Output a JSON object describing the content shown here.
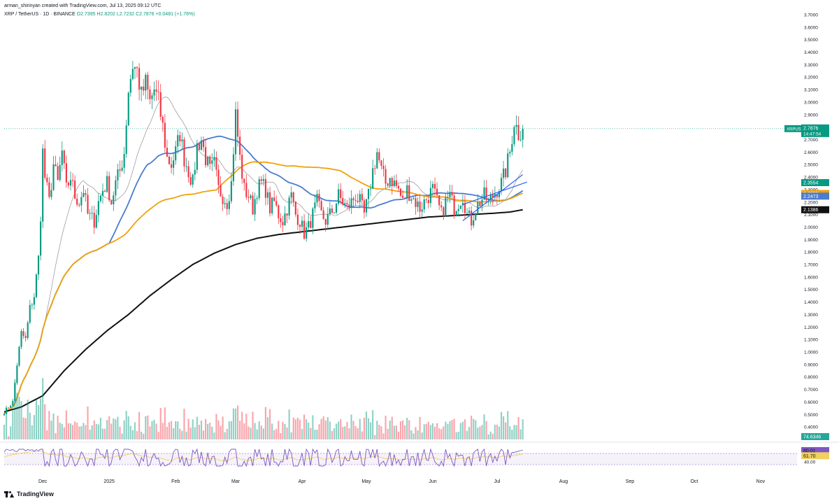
{
  "header": {
    "line1": "arman_shirinyan created with TradingView.com, Jul 13, 2025 09:12 UTC",
    "symbol": "XRP / TetherUS · 1D · BINANCE",
    "ohlc": "O2.7395 H2.8202 L2.7232 C2.7876 +0.0481 (+1.76%)"
  },
  "footer": {
    "logo_text": "TradingView"
  },
  "colors": {
    "up": "#089981",
    "down": "#f23645",
    "ma20": "#9e9e9e",
    "ma50": "#4a7ccf",
    "ma100": "#f0a20a",
    "ma200": "#111111",
    "rsi": "#7e57c2"
  },
  "chart_data": {
    "type": "candlestick",
    "price_axis": {
      "ylim": [
        0.3,
        3.75
      ],
      "ticks": [
        "0.4000",
        "0.5000",
        "0.6000",
        "0.7000",
        "0.8000",
        "0.9000",
        "1.0000",
        "1.1000",
        "1.2000",
        "1.3000",
        "1.4000",
        "1.5000",
        "1.6000",
        "1.7000",
        "1.8000",
        "1.9000",
        "2.0000",
        "2.1000",
        "2.2000",
        "2.3000",
        "2.4000",
        "2.5000",
        "2.6000",
        "2.7000",
        "2.8000",
        "2.9000",
        "3.0000",
        "3.1000",
        "3.2000",
        "3.3000",
        "3.4000",
        "3.5000",
        "3.6000",
        "3.7000"
      ]
    },
    "time_axis": {
      "labels": [
        {
          "text": "Dec",
          "day": 0
        },
        {
          "text": "2025",
          "day": 31
        },
        {
          "text": "Feb",
          "day": 62
        },
        {
          "text": "Mar",
          "day": 90
        },
        {
          "text": "Apr",
          "day": 121
        },
        {
          "text": "May",
          "day": 151
        },
        {
          "text": "Jun",
          "day": 182
        },
        {
          "text": "Jul",
          "day": 212
        },
        {
          "text": "Aug",
          "day": 243
        },
        {
          "text": "Sep",
          "day": 274
        },
        {
          "text": "Oct",
          "day": 304
        },
        {
          "text": "Nov",
          "day": 335
        }
      ],
      "first_day_offset": -18,
      "last_day": 224,
      "max_day": 352
    },
    "price_anchors": [
      [
        -18,
        0.52
      ],
      [
        -14,
        0.6
      ],
      [
        -12,
        0.9
      ],
      [
        -10,
        1.15
      ],
      [
        -8,
        1.1
      ],
      [
        -6,
        1.35
      ],
      [
        -4,
        1.45
      ],
      [
        -2,
        1.75
      ],
      [
        -1,
        2.1
      ],
      [
        0,
        2.6
      ],
      [
        1,
        2.4
      ],
      [
        3,
        2.2
      ],
      [
        5,
        2.5
      ],
      [
        7,
        2.35
      ],
      [
        9,
        2.6
      ],
      [
        11,
        2.3
      ],
      [
        13,
        2.4
      ],
      [
        15,
        2.25
      ],
      [
        17,
        2.2
      ],
      [
        19,
        2.3
      ],
      [
        21,
        2.1
      ],
      [
        24,
        2.05
      ],
      [
        26,
        2.2
      ],
      [
        28,
        2.3
      ],
      [
        30,
        2.35
      ],
      [
        32,
        2.2
      ],
      [
        34,
        2.35
      ],
      [
        36,
        2.45
      ],
      [
        38,
        2.6
      ],
      [
        40,
        3.1
      ],
      [
        42,
        3.3
      ],
      [
        44,
        3.25
      ],
      [
        46,
        3.05
      ],
      [
        48,
        3.15
      ],
      [
        50,
        3.0
      ],
      [
        52,
        3.1
      ],
      [
        54,
        3.0
      ],
      [
        56,
        2.8
      ],
      [
        58,
        2.55
      ],
      [
        60,
        2.5
      ],
      [
        62,
        2.6
      ],
      [
        64,
        2.75
      ],
      [
        66,
        2.55
      ],
      [
        68,
        2.45
      ],
      [
        70,
        2.35
      ],
      [
        72,
        2.65
      ],
      [
        74,
        2.7
      ],
      [
        76,
        2.55
      ],
      [
        78,
        2.45
      ],
      [
        80,
        2.5
      ],
      [
        82,
        2.3
      ],
      [
        84,
        2.25
      ],
      [
        86,
        2.2
      ],
      [
        88,
        2.35
      ],
      [
        90,
        2.9
      ],
      [
        92,
        2.55
      ],
      [
        94,
        2.3
      ],
      [
        96,
        2.25
      ],
      [
        98,
        2.15
      ],
      [
        100,
        2.3
      ],
      [
        102,
        2.35
      ],
      [
        104,
        2.3
      ],
      [
        106,
        2.15
      ],
      [
        108,
        2.2
      ],
      [
        110,
        2.1
      ],
      [
        112,
        2.05
      ],
      [
        114,
        2.15
      ],
      [
        116,
        2.25
      ],
      [
        118,
        2.1
      ],
      [
        120,
        2.05
      ],
      [
        122,
        1.95
      ],
      [
        124,
        2.0
      ],
      [
        126,
        2.1
      ],
      [
        128,
        2.2
      ],
      [
        130,
        2.1
      ],
      [
        132,
        2.05
      ],
      [
        134,
        2.1
      ],
      [
        136,
        2.15
      ],
      [
        138,
        2.25
      ],
      [
        140,
        2.2
      ],
      [
        142,
        2.15
      ],
      [
        144,
        2.2
      ],
      [
        146,
        2.25
      ],
      [
        148,
        2.2
      ],
      [
        150,
        2.1
      ],
      [
        152,
        2.25
      ],
      [
        154,
        2.45
      ],
      [
        156,
        2.6
      ],
      [
        158,
        2.45
      ],
      [
        160,
        2.35
      ],
      [
        162,
        2.4
      ],
      [
        164,
        2.35
      ],
      [
        166,
        2.3
      ],
      [
        168,
        2.2
      ],
      [
        170,
        2.3
      ],
      [
        172,
        2.25
      ],
      [
        174,
        2.2
      ],
      [
        176,
        2.15
      ],
      [
        178,
        2.2
      ],
      [
        180,
        2.25
      ],
      [
        182,
        2.3
      ],
      [
        184,
        2.2
      ],
      [
        186,
        2.1
      ],
      [
        188,
        2.2
      ],
      [
        190,
        2.25
      ],
      [
        192,
        2.15
      ],
      [
        194,
        2.2
      ],
      [
        196,
        2.25
      ],
      [
        198,
        2.1
      ],
      [
        200,
        2.05
      ],
      [
        202,
        2.15
      ],
      [
        204,
        2.2
      ],
      [
        206,
        2.25
      ],
      [
        208,
        2.2
      ],
      [
        210,
        2.25
      ],
      [
        212,
        2.3
      ],
      [
        214,
        2.35
      ],
      [
        216,
        2.45
      ],
      [
        218,
        2.6
      ],
      [
        220,
        2.85
      ],
      [
        222,
        2.75
      ],
      [
        224,
        2.7876
      ]
    ],
    "moving_averages": [
      {
        "period": 20,
        "color": "#9e9e9e",
        "label": ""
      },
      {
        "period": 50,
        "color": "#4a7ccf",
        "label": "2.2473"
      },
      {
        "period": 100,
        "color": "#f0a20a",
        "label": "2.2686"
      },
      {
        "period": 200,
        "color": "#111111",
        "label": "2.1386",
        "anchors": [
          [
            -18,
            0.52
          ],
          [
            -10,
            0.56
          ],
          [
            0,
            0.65
          ],
          [
            10,
            0.85
          ],
          [
            20,
            1.02
          ],
          [
            30,
            1.17
          ],
          [
            40,
            1.3
          ],
          [
            50,
            1.45
          ],
          [
            60,
            1.58
          ],
          [
            70,
            1.7
          ],
          [
            80,
            1.79
          ],
          [
            90,
            1.86
          ],
          [
            100,
            1.91
          ],
          [
            110,
            1.94
          ],
          [
            120,
            1.96
          ],
          [
            130,
            1.98
          ],
          [
            140,
            2.0
          ],
          [
            150,
            2.02
          ],
          [
            160,
            2.04
          ],
          [
            170,
            2.06
          ],
          [
            180,
            2.08
          ],
          [
            190,
            2.09
          ],
          [
            200,
            2.1
          ],
          [
            210,
            2.11
          ],
          [
            218,
            2.12
          ],
          [
            224,
            2.1386
          ]
        ]
      }
    ],
    "last_price": {
      "value": 2.7876,
      "label": "2.7876",
      "countdown": "14:47:54",
      "symbol_tag": "XRPUSDT"
    },
    "price_labels": [
      {
        "value": 2.3554,
        "label": "2.3554",
        "color": "#089981"
      },
      {
        "value": 2.2686,
        "label": "2.2686",
        "color": "#f0a20a"
      },
      {
        "value": 2.2473,
        "label": "2.2473",
        "color": "#4a7ccf"
      },
      {
        "value": 2.1386,
        "label": "2.1386",
        "color": "#111111"
      }
    ],
    "channel": [
      {
        "from": [
          196,
          2.05
        ],
        "to": [
          224,
          2.42
        ]
      },
      {
        "from": [
          196,
          2.18
        ],
        "to": [
          226,
          2.36
        ]
      }
    ],
    "volume": {
      "label": "74.6346"
    },
    "rsi": {
      "ylim": [
        0,
        100
      ],
      "ticks": [
        "40.00"
      ],
      "labels": [
        {
          "value": 80.01,
          "label": "80.01",
          "color": "#7e57c2"
        },
        {
          "value": 61.7,
          "label": "61.70",
          "color": "#f0d060"
        }
      ],
      "bands": [
        70,
        30
      ]
    }
  }
}
